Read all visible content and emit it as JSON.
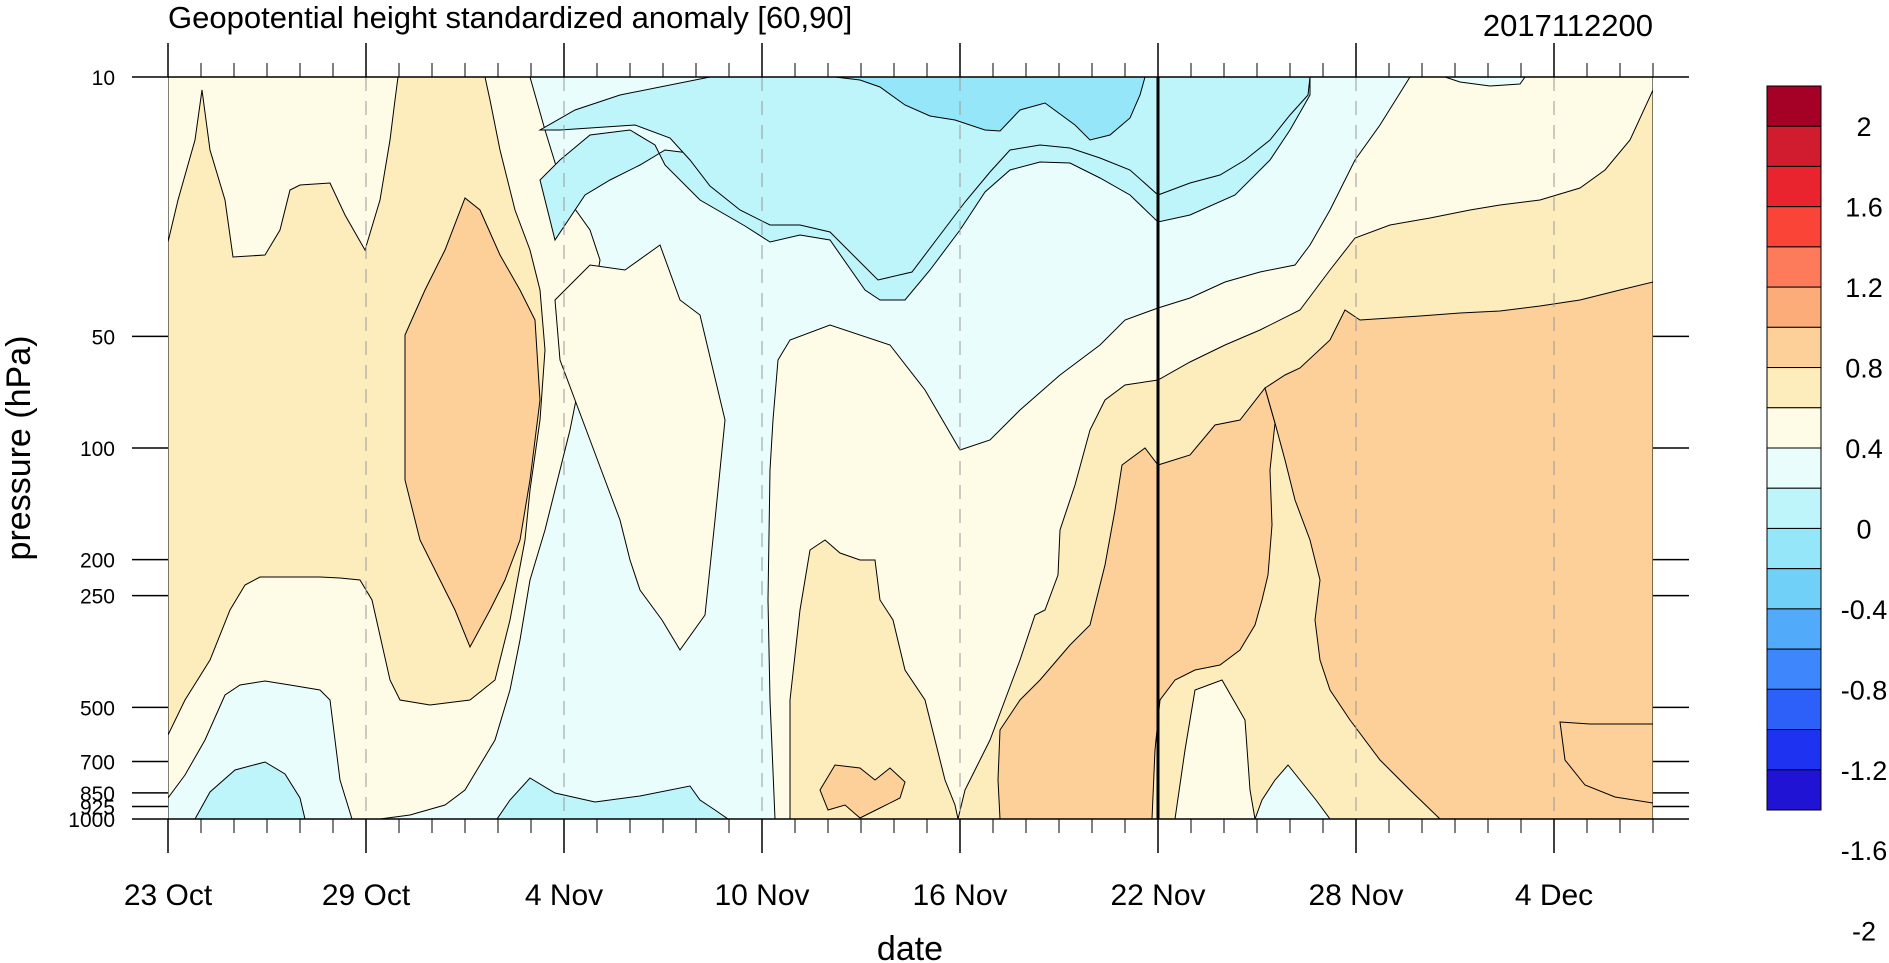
{
  "chart_data": {
    "type": "heatmap",
    "title": "Geopotential height standardized anomaly [60,90]",
    "subtitle": "2017112200",
    "xlabel": "date",
    "ylabel": "pressure (hPa)",
    "x_ticks": [
      {
        "label": "23 Oct",
        "day": 0
      },
      {
        "label": "29 Oct",
        "day": 6
      },
      {
        "label": "4 Nov",
        "day": 12
      },
      {
        "label": "10 Nov",
        "day": 18
      },
      {
        "label": "16 Nov",
        "day": 24
      },
      {
        "label": "22 Nov",
        "day": 30
      },
      {
        "label": "28 Nov",
        "day": 36
      },
      {
        "label": "4 Dec",
        "day": 42
      }
    ],
    "x_range_days": [
      0,
      45
    ],
    "y_ticks": [
      10,
      50,
      100,
      200,
      250,
      500,
      700,
      850,
      925,
      1000
    ],
    "y_range": [
      10,
      1000
    ],
    "y_scale": "log, inverted",
    "marker_date": "22 Nov",
    "colorbar": {
      "labels": [
        "2",
        "1.6",
        "1.2",
        "0.8",
        "0.4",
        "0",
        "-0.4",
        "-0.8",
        "-1.2",
        "-1.6",
        "-2"
      ],
      "colors": [
        "#a50026",
        "#d01c2e",
        "#e9242f",
        "#fb4438",
        "#fd7b5b",
        "#fcac78",
        "#fdd09a",
        "#fdedbd",
        "#fefbe6",
        "#eafdfd",
        "#bdf5fb",
        "#95e6f8",
        "#70d0f8",
        "#52aafb",
        "#3d86fb",
        "#2d5ff9",
        "#1e33f2",
        "#2013d3"
      ]
    },
    "fill_colors": {
      "n04": "#eafdfd",
      "n08": "#bdf5fb",
      "n12": "#95e6f8",
      "p00": "#fefbe6",
      "p04": "#fdedbd",
      "p08": "#fdd09a",
      "p12": "#fcac78"
    }
  }
}
